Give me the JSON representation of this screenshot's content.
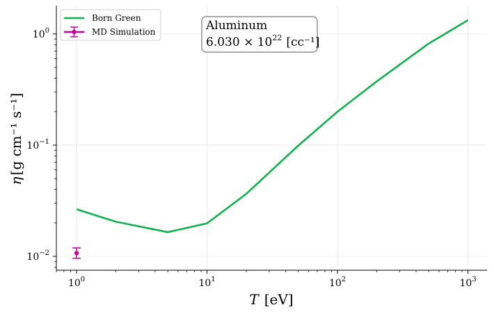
{
  "chart_data": {
    "type": "line",
    "xlabel_var": "T",
    "xlabel_unit": "[eV]",
    "ylabel_var": "η",
    "ylabel_unit": "[g cm⁻¹ s⁻¹]",
    "xscale": "log",
    "yscale": "log",
    "xlim": [
      0.7,
      1400
    ],
    "ylim": [
      0.0075,
      1.8
    ],
    "grid": true,
    "legend_position": "top-left",
    "x_ticks": [
      {
        "base": "10",
        "exp": "0"
      },
      {
        "base": "10",
        "exp": "1"
      },
      {
        "base": "10",
        "exp": "2"
      },
      {
        "base": "10",
        "exp": "3"
      }
    ],
    "y_ticks": [
      {
        "base": "10",
        "exp": "−2"
      },
      {
        "base": "10",
        "exp": "−1"
      },
      {
        "base": "10",
        "exp": "0"
      }
    ],
    "series": [
      {
        "name": "Born Green",
        "kind": "line",
        "color": "#12b04c",
        "x": [
          1,
          2,
          5,
          10,
          20,
          50,
          100,
          200,
          500,
          1000
        ],
        "y": [
          0.0265,
          0.0205,
          0.0165,
          0.0198,
          0.0365,
          0.099,
          0.2,
          0.375,
          0.82,
          1.33
        ]
      },
      {
        "name": "MD Simulation",
        "kind": "errorbar",
        "color": "#c000a0",
        "x": [
          1
        ],
        "y": [
          0.0107
        ],
        "yerr_low": [
          0.0096
        ],
        "yerr_high": [
          0.0119
        ]
      }
    ],
    "annotation": {
      "line1": "Aluminum",
      "line2_mantissa": "6.030 × 10",
      "line2_exp": "22",
      "line2_unit": "[cc⁻¹]"
    }
  }
}
